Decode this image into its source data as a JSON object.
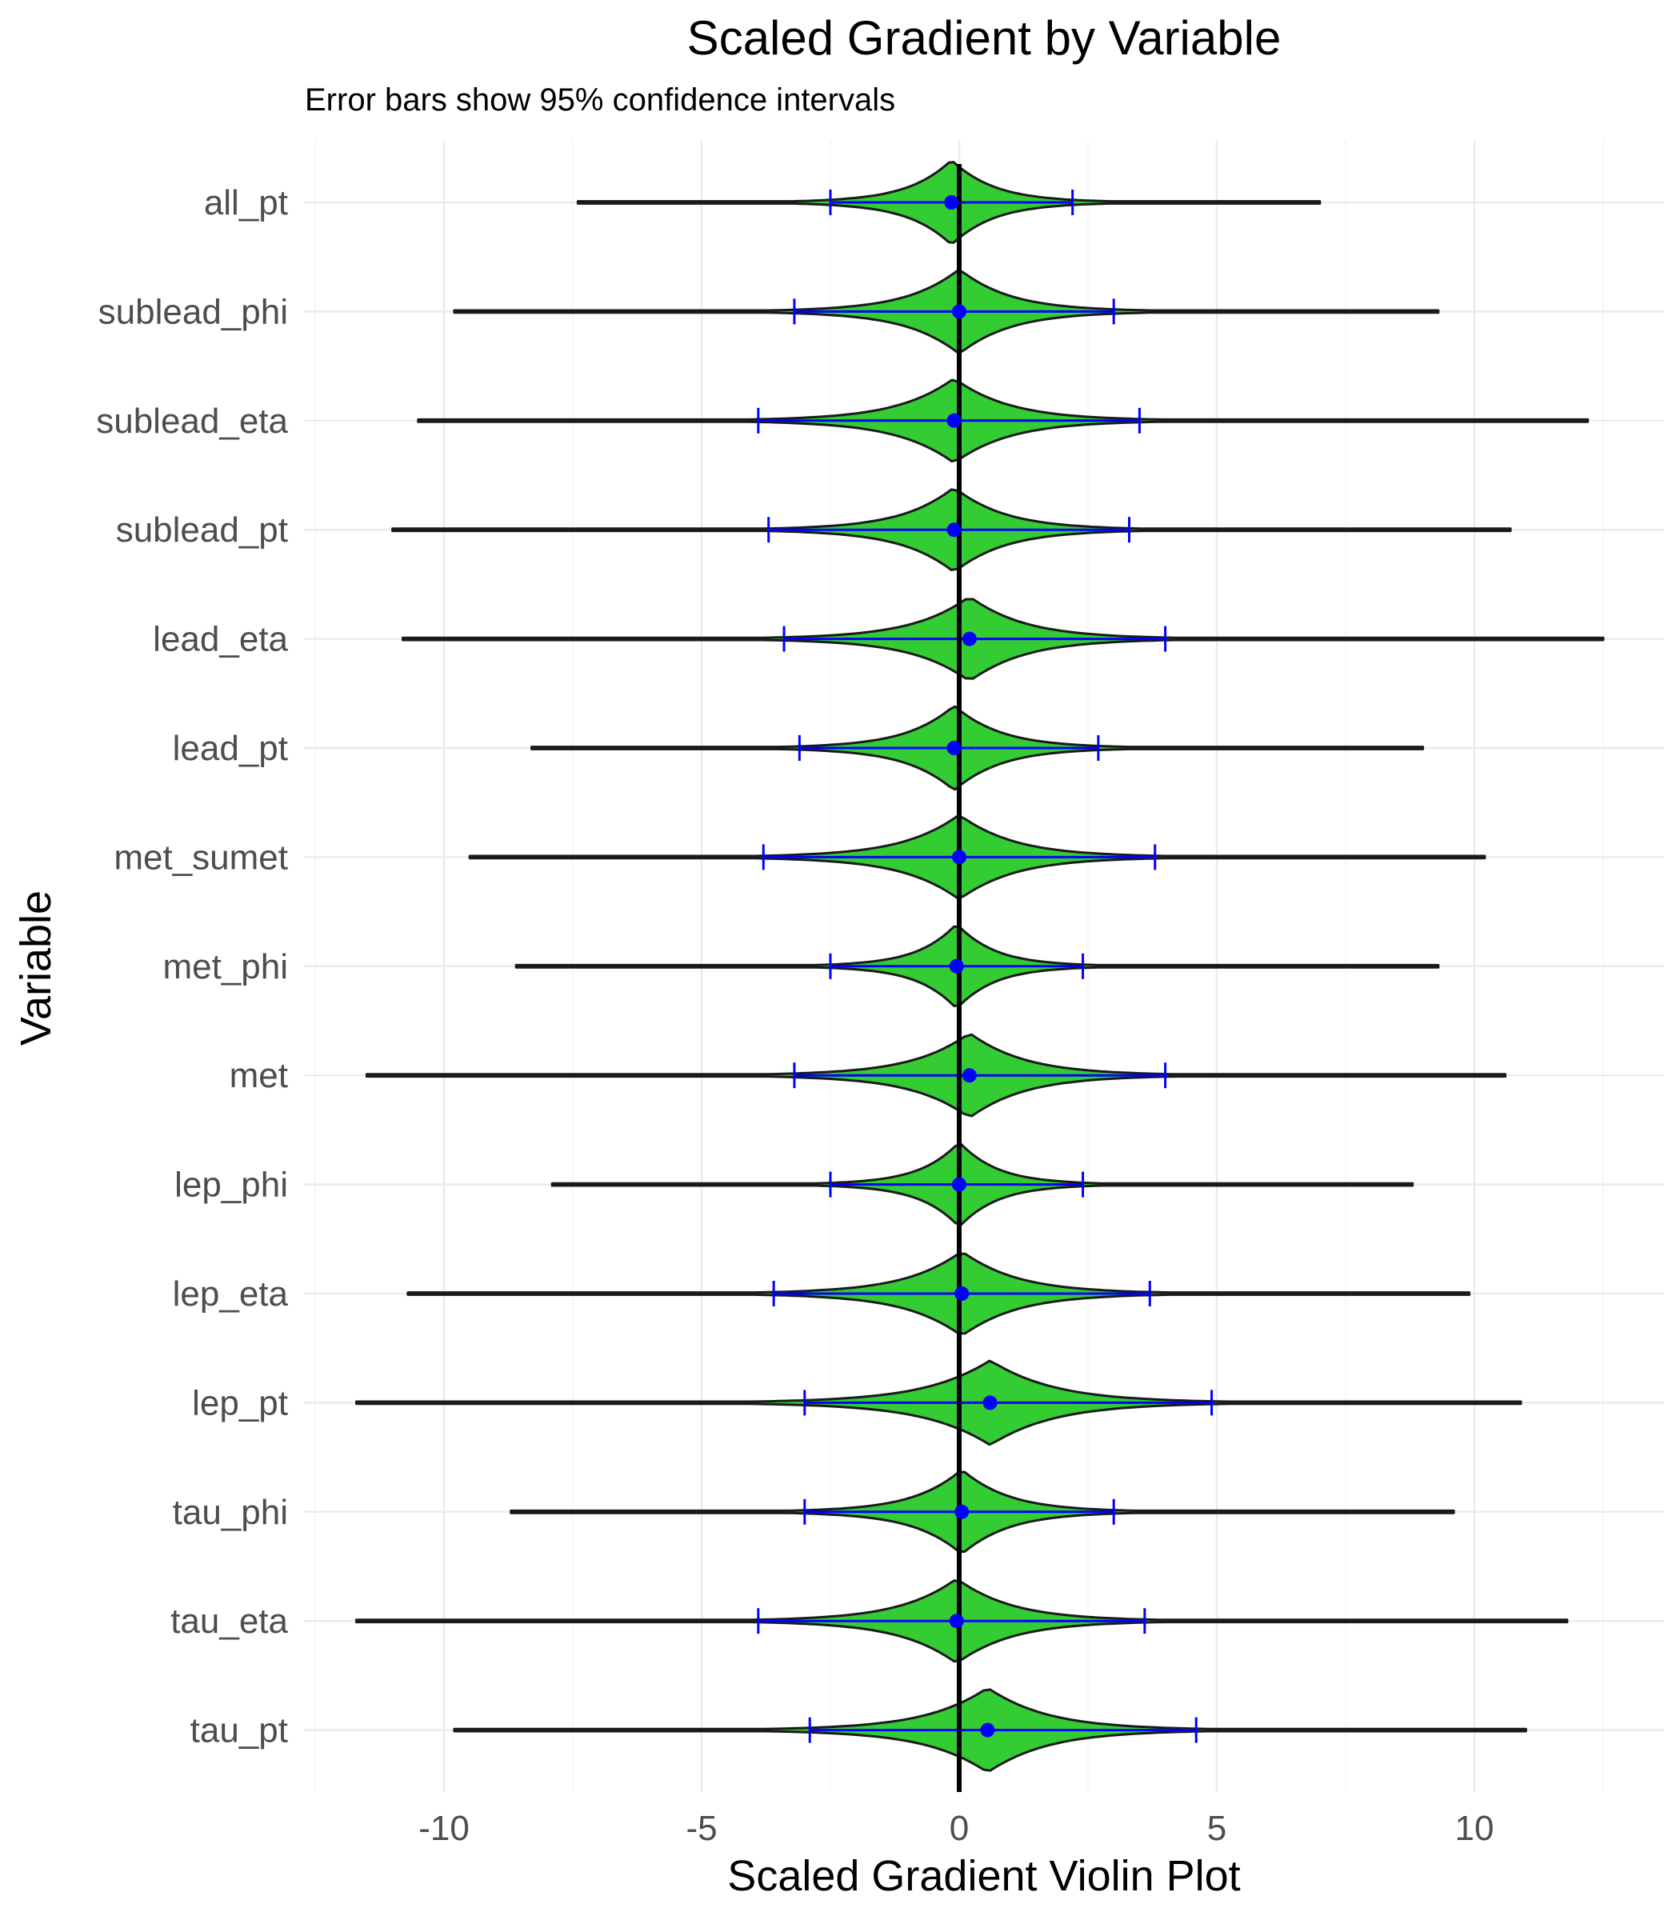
{
  "chart_data": {
    "type": "violin",
    "title": "Scaled Gradient by Variable",
    "subtitle": "Error bars show 95% confidence intervals",
    "xlabel": "Scaled Gradient Violin Plot",
    "ylabel": "Variable",
    "xlim": [
      -12.5,
      13.5
    ],
    "xticks": [
      -10,
      -5,
      0,
      5,
      10
    ],
    "xtick_labels": [
      "-10",
      "-5",
      "0",
      "5",
      "10"
    ],
    "vline_x": 0,
    "grid": true,
    "legend": "none",
    "colors": {
      "violin_fill": "#33cc33",
      "violin_outline": "#1a1a1a",
      "error_bar": "#0000ff",
      "mean_point": "#0000ff",
      "zero_line": "#000000"
    },
    "categories": [
      "all_pt",
      "sublead_phi",
      "sublead_eta",
      "sublead_pt",
      "lead_eta",
      "lead_pt",
      "met_sumet",
      "met_phi",
      "met",
      "lep_phi",
      "lep_eta",
      "lep_pt",
      "tau_phi",
      "tau_eta",
      "tau_pt"
    ],
    "violins": [
      {
        "variable": "all_pt",
        "min": -7.4,
        "max": 7.0,
        "mean": -0.15,
        "ci_low": -2.5,
        "ci_high": 2.2,
        "spread": 1.0
      },
      {
        "variable": "sublead_phi",
        "min": -9.8,
        "max": 9.3,
        "mean": 0.0,
        "ci_low": -3.2,
        "ci_high": 3.0,
        "spread": 1.2
      },
      {
        "variable": "sublead_eta",
        "min": -10.5,
        "max": 12.2,
        "mean": -0.1,
        "ci_low": -3.9,
        "ci_high": 3.5,
        "spread": 1.3
      },
      {
        "variable": "sublead_pt",
        "min": -11.0,
        "max": 10.7,
        "mean": -0.1,
        "ci_low": -3.7,
        "ci_high": 3.3,
        "spread": 1.2
      },
      {
        "variable": "lead_eta",
        "min": -10.8,
        "max": 12.5,
        "mean": 0.2,
        "ci_low": -3.4,
        "ci_high": 4.0,
        "spread": 1.3
      },
      {
        "variable": "lead_pt",
        "min": -8.3,
        "max": 9.0,
        "mean": -0.1,
        "ci_low": -3.1,
        "ci_high": 2.7,
        "spread": 1.1
      },
      {
        "variable": "met_sumet",
        "min": -9.5,
        "max": 10.2,
        "mean": 0.0,
        "ci_low": -3.8,
        "ci_high": 3.8,
        "spread": 1.3
      },
      {
        "variable": "met_phi",
        "min": -8.6,
        "max": 9.3,
        "mean": -0.05,
        "ci_low": -2.5,
        "ci_high": 2.4,
        "spread": 0.9
      },
      {
        "variable": "met",
        "min": -11.5,
        "max": 10.6,
        "mean": 0.2,
        "ci_low": -3.2,
        "ci_high": 4.0,
        "spread": 1.3
      },
      {
        "variable": "lep_phi",
        "min": -7.9,
        "max": 8.8,
        "mean": 0.0,
        "ci_low": -2.5,
        "ci_high": 2.4,
        "spread": 0.9
      },
      {
        "variable": "lep_eta",
        "min": -10.7,
        "max": 9.9,
        "mean": 0.05,
        "ci_low": -3.6,
        "ci_high": 3.7,
        "spread": 1.3
      },
      {
        "variable": "lep_pt",
        "min": -11.7,
        "max": 10.9,
        "mean": 0.6,
        "ci_low": -3.0,
        "ci_high": 4.9,
        "spread": 1.5
      },
      {
        "variable": "tau_phi",
        "min": -8.7,
        "max": 9.6,
        "mean": 0.05,
        "ci_low": -3.0,
        "ci_high": 3.0,
        "spread": 1.1
      },
      {
        "variable": "tau_eta",
        "min": -11.7,
        "max": 11.8,
        "mean": -0.05,
        "ci_low": -3.9,
        "ci_high": 3.6,
        "spread": 1.3
      },
      {
        "variable": "tau_pt",
        "min": -9.8,
        "max": 11.0,
        "mean": 0.55,
        "ci_low": -2.9,
        "ci_high": 4.6,
        "spread": 1.4
      }
    ]
  }
}
